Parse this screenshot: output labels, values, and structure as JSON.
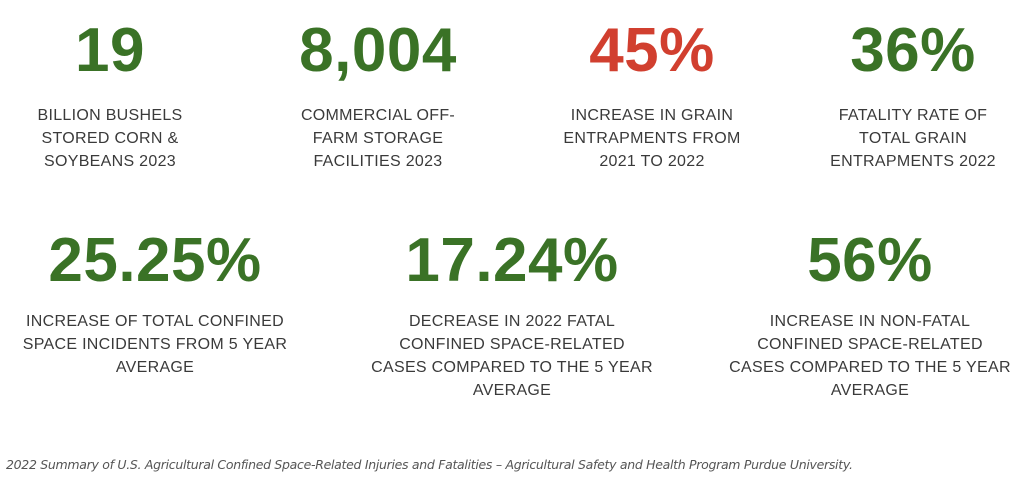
{
  "colors": {
    "green": "#3a7226",
    "red": "#d13f2f",
    "text": "#3a3a3a"
  },
  "top_stats": [
    {
      "value": "19",
      "label": "BILLION BUSHELS STORED CORN & SOYBEANS 2023",
      "lines": [
        "BILLION BUSHELS",
        "STORED CORN &",
        "SOYBEANS 2023"
      ]
    },
    {
      "value": "8,004",
      "lines": [
        "COMMERCIAL OFF-",
        "FARM STORAGE",
        "FACILITIES 2023"
      ]
    },
    {
      "value": "45%",
      "lines": [
        "INCREASE IN GRAIN",
        "ENTRAPMENTS FROM",
        "2021 TO 2022"
      ]
    },
    {
      "value": "36%",
      "lines": [
        "FATALITY RATE OF",
        "TOTAL GRAIN",
        "ENTRAPMENTS 2022"
      ]
    }
  ],
  "bottom_stats": [
    {
      "value": "25.25%",
      "lines": [
        "INCREASE OF TOTAL CONFINED",
        "SPACE INCIDENTS FROM 5 YEAR",
        "AVERAGE"
      ]
    },
    {
      "value": "17.24%",
      "lines": [
        "DECREASE IN 2022 FATAL",
        "CONFINED SPACE-RELATED",
        "CASES COMPARED TO THE 5 YEAR",
        "AVERAGE"
      ]
    },
    {
      "value": "56%",
      "lines": [
        "INCREASE IN NON-FATAL",
        "CONFINED SPACE-RELATED",
        "CASES COMPARED TO THE 5 YEAR",
        "AVERAGE"
      ]
    }
  ],
  "footer": "2022 Summary of U.S. Agricultural Confined Space-Related Injuries and Fatalities – Agricultural Safety and Health Program Purdue University."
}
